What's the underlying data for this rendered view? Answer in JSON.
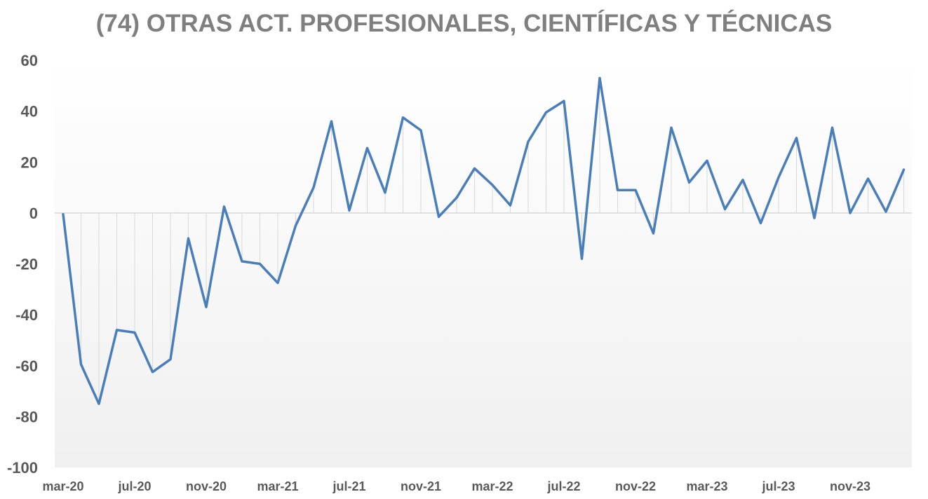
{
  "chart_data": {
    "type": "line",
    "title": "(74) OTRAS ACT. PROFESIONALES, CIENTÍFICAS Y TÉCNICAS",
    "xlabel": "",
    "ylabel": "",
    "ylim": [
      -100,
      60
    ],
    "yticks": [
      60,
      40,
      20,
      0,
      -20,
      -40,
      -60,
      -80,
      -100
    ],
    "grid": "vertical drop lines to zero",
    "legend": "none",
    "colors": {
      "line": "#4a7ebb",
      "drop_line": "#d9d9d9",
      "zero_axis": "#d9d9d9",
      "title": "#7f7f7f",
      "tick": "#595959",
      "background_top": "#ffffff",
      "background_bottom": "#f0f0f0"
    },
    "x_tick_labels": [
      "mar-20",
      "jul-20",
      "nov-20",
      "mar-21",
      "jul-21",
      "nov-21",
      "mar-22",
      "jul-22",
      "nov-22",
      "mar-23",
      "jul-23",
      "nov-23"
    ],
    "x": [
      "mar-20",
      "abr-20",
      "may-20",
      "jun-20",
      "jul-20",
      "ago-20",
      "sep-20",
      "oct-20",
      "nov-20",
      "dic-20",
      "ene-21",
      "feb-21",
      "mar-21",
      "abr-21",
      "may-21",
      "jun-21",
      "jul-21",
      "ago-21",
      "sep-21",
      "oct-21",
      "nov-21",
      "dic-21",
      "ene-22",
      "feb-22",
      "mar-22",
      "abr-22",
      "may-22",
      "jun-22",
      "jul-22",
      "ago-22",
      "sep-22",
      "oct-22",
      "nov-22",
      "dic-22",
      "ene-23",
      "feb-23",
      "mar-23",
      "abr-23",
      "may-23",
      "jun-23",
      "jul-23",
      "ago-23",
      "sep-23",
      "oct-23",
      "nov-23",
      "dic-23",
      "ene-24",
      "feb-24"
    ],
    "series": [
      {
        "values": [
          -0.5,
          -59.5,
          -75,
          -46,
          -47,
          -62.5,
          -57.5,
          -10,
          -37,
          2.5,
          -19,
          -20,
          -27.5,
          -5,
          10,
          36,
          1,
          25.5,
          8,
          37.5,
          32.5,
          -1.5,
          6,
          17.5,
          11,
          3,
          28,
          39.5,
          44,
          -18,
          53,
          9,
          9,
          -8,
          33.5,
          12,
          20.5,
          1.5,
          13,
          -4,
          14,
          29.5,
          -2,
          33.5,
          0,
          13.5,
          0.5,
          17
        ]
      }
    ]
  }
}
